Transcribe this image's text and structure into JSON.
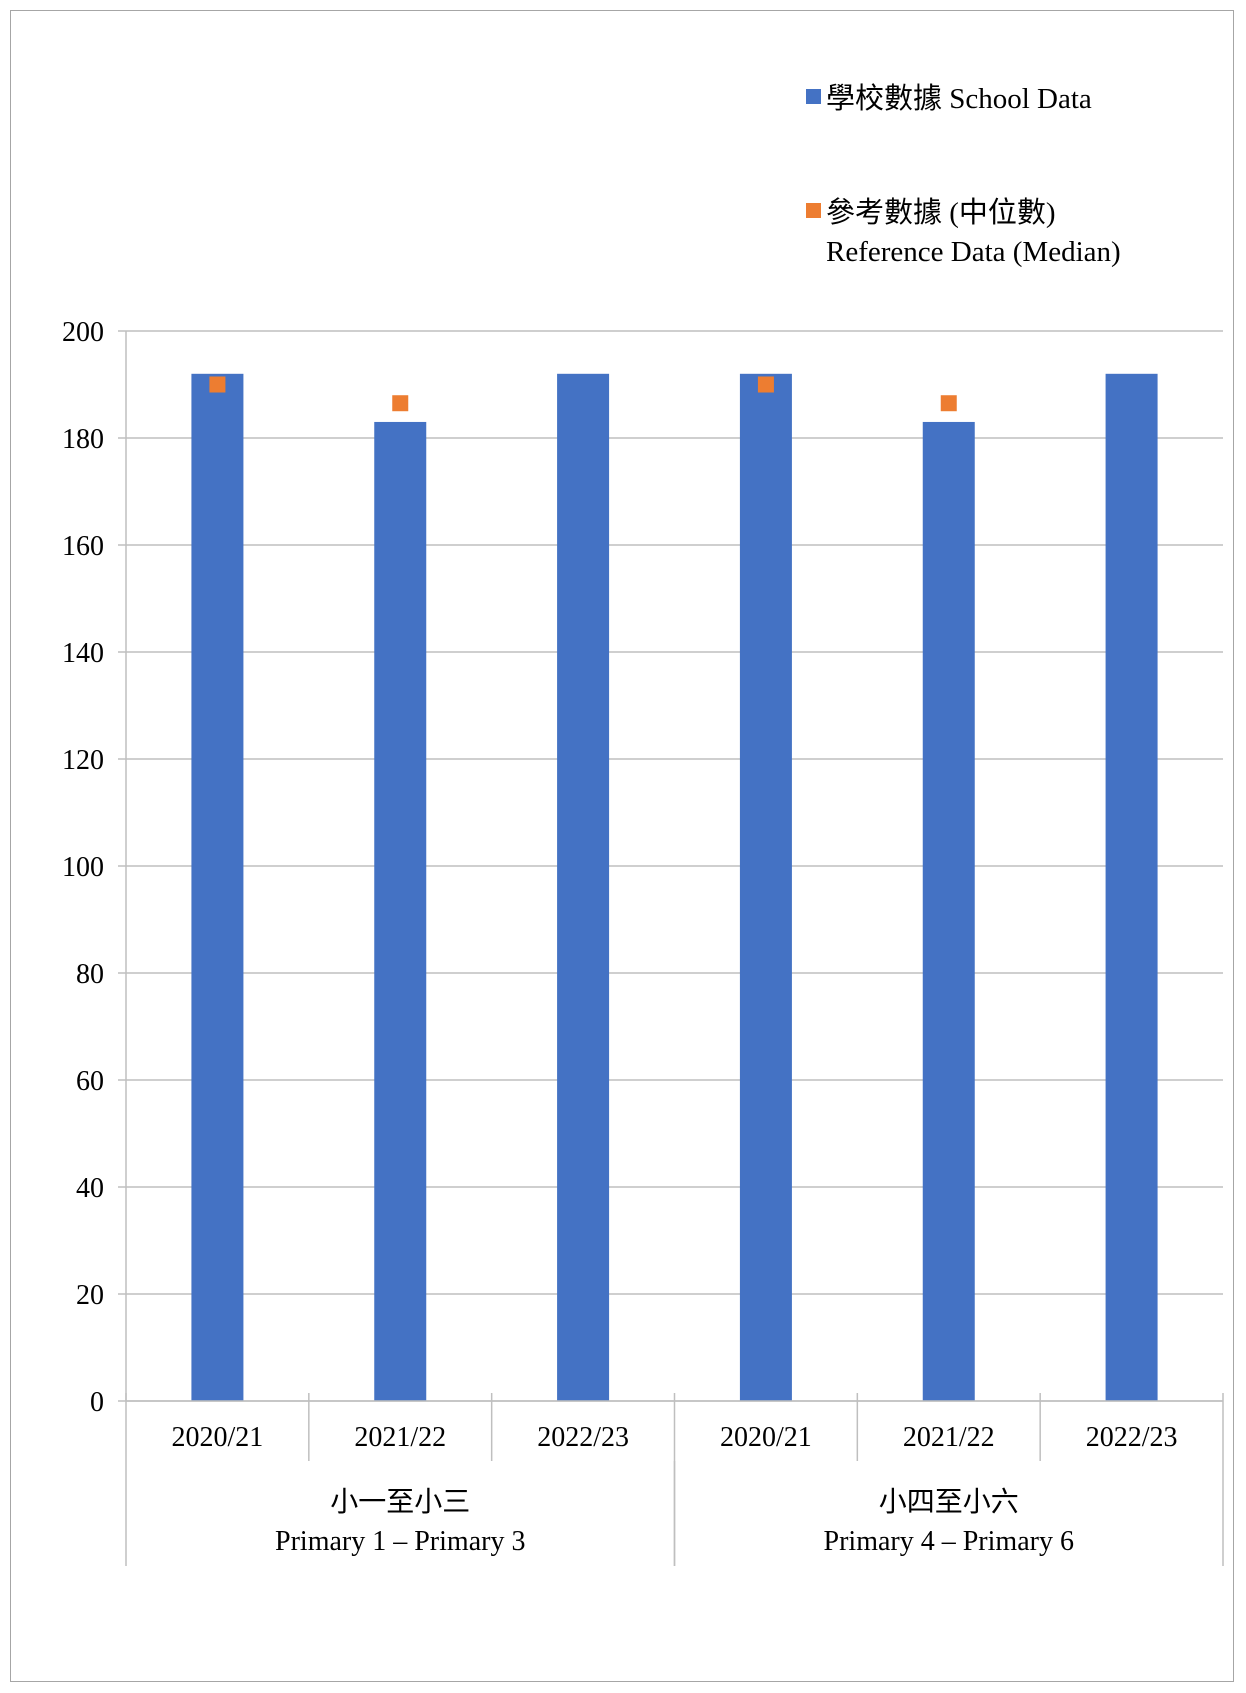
{
  "chart_data": {
    "type": "bar",
    "categories": [
      "2020/21",
      "2021/22",
      "2022/23",
      "2020/21",
      "2021/22",
      "2022/23"
    ],
    "groups": [
      {
        "label_zh": "小一至小三",
        "label_en": "Primary 1 – Primary 3",
        "span": [
          0,
          3
        ]
      },
      {
        "label_zh": "小四至小六",
        "label_en": "Primary 4 – Primary 6",
        "span": [
          3,
          6
        ]
      }
    ],
    "series": [
      {
        "name": "學校數據 School Data",
        "kind": "bar",
        "color": "#4472C4",
        "values": [
          192,
          183,
          192,
          192,
          183,
          192
        ]
      },
      {
        "name_line1": "參考數據 (中位數)",
        "name_line2": "Reference Data (Median)",
        "kind": "marker",
        "color": "#ED7D31",
        "values": [
          190,
          186.5,
          null,
          190,
          186.5,
          null
        ]
      }
    ],
    "ylim": [
      0,
      200
    ],
    "yticks": [
      0,
      20,
      40,
      60,
      80,
      100,
      120,
      140,
      160,
      180,
      200
    ],
    "grid": true,
    "legend_position": "top-right"
  }
}
